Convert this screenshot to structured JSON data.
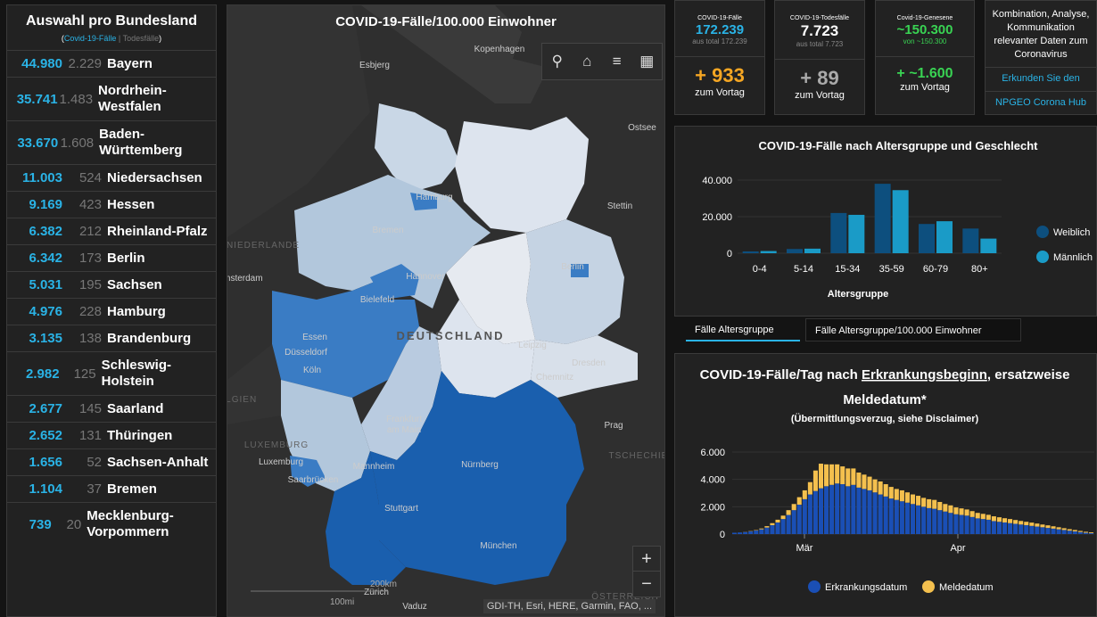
{
  "left": {
    "title": "Auswahl pro Bundesland",
    "legend_cases": "Covid-19-Fälle",
    "legend_sep": " | ",
    "legend_deaths": "Todesfälle",
    "rows": [
      {
        "cases": "44.980",
        "deaths": "2.229",
        "name": "Bayern"
      },
      {
        "cases": "35.741",
        "deaths": "1.483",
        "name": "Nordrhein-Westfalen"
      },
      {
        "cases": "33.670",
        "deaths": "1.608",
        "name": "Baden-Württemberg"
      },
      {
        "cases": "11.003",
        "deaths": "524",
        "name": "Niedersachsen"
      },
      {
        "cases": "9.169",
        "deaths": "423",
        "name": "Hessen"
      },
      {
        "cases": "6.382",
        "deaths": "212",
        "name": "Rheinland-Pfalz"
      },
      {
        "cases": "6.342",
        "deaths": "173",
        "name": "Berlin"
      },
      {
        "cases": "5.031",
        "deaths": "195",
        "name": "Sachsen"
      },
      {
        "cases": "4.976",
        "deaths": "228",
        "name": "Hamburg"
      },
      {
        "cases": "3.135",
        "deaths": "138",
        "name": "Brandenburg"
      },
      {
        "cases": "2.982",
        "deaths": "125",
        "name": "Schleswig-Holstein"
      },
      {
        "cases": "2.677",
        "deaths": "145",
        "name": "Saarland"
      },
      {
        "cases": "2.652",
        "deaths": "131",
        "name": "Thüringen"
      },
      {
        "cases": "1.656",
        "deaths": "52",
        "name": "Sachsen-Anhalt"
      },
      {
        "cases": "1.104",
        "deaths": "37",
        "name": "Bremen"
      },
      {
        "cases": "739",
        "deaths": "20",
        "name": "Mecklenburg-Vorpommern"
      }
    ]
  },
  "map": {
    "title": "COVID-19-Fälle/100.000 Einwohner",
    "toolbar": {
      "search": "search-icon",
      "home": "home-icon",
      "list": "list-icon",
      "qr": "qr-icon"
    },
    "country_label": "DEUTSCHLAND",
    "cities": [
      "Esbjerg",
      "Kopenhagen",
      "Ostsee",
      "Hamburg",
      "Stettin",
      "Bremen",
      "Berlin",
      "Hannover",
      "Bielefeld",
      "Essen",
      "Düsseldorf",
      "Köln",
      "Leipzig",
      "Dresden",
      "Chemnitz",
      "Frankfurt am Main",
      "Mannheim",
      "Luxemburg",
      "Saarbrücken",
      "Nürnberg",
      "Stuttgart",
      "München",
      "Prag",
      "Zürich",
      "Vaduz",
      "NIEDERLANDE",
      "BELGIEN",
      "LUXEMBURG",
      "TSCHECHIEN",
      "ÖSTERREICH",
      "Amsterdam"
    ],
    "zoom_in": "+",
    "zoom_out": "−",
    "scale_km": "200km",
    "scale_mi": "100mi",
    "attribution": "GDI-TH, Esri, HERE, Garmin, FAO, ..."
  },
  "stats": {
    "cases": {
      "label": "COVID-19-Fälle",
      "value": "172.239",
      "sub": "aus total 172.239",
      "delta": "+ 933",
      "delta_label": "zum Vortag",
      "color": "#2ab3e6",
      "delta_color": "#f5a623"
    },
    "deaths": {
      "label": "COVID-19-Todesfälle",
      "value": "7.723",
      "sub": "aus total 7.723",
      "delta": "+ 89",
      "delta_label": "zum Vortag",
      "color": "#ffffff",
      "delta_color": "#aaaaaa"
    },
    "recovered": {
      "label": "Covid-19-Genesene",
      "value": "~150.300",
      "sub": "von ~150.300",
      "delta": "+ ~1.600",
      "delta_label": "zum Vortag",
      "color": "#39d353",
      "delta_color": "#39d353"
    }
  },
  "combo": {
    "text": "Kombination, Analyse, Kommunikation relevanter Daten zum Coronavirus",
    "link1": "Erkunden Sie den",
    "link2": "NPGEO Corona Hub"
  },
  "tabs": {
    "active": "Fälle Altersgruppe",
    "inactive": "Fälle Altersgruppe/100.000 Einwohner"
  },
  "chart_data": [
    {
      "type": "bar",
      "title": "COVID-19-Fälle nach Altersgruppe und Geschlecht",
      "xlabel": "Altersgruppe",
      "ylabel": "",
      "categories": [
        "0-4",
        "5-14",
        "15-34",
        "35-59",
        "60-79",
        "80+"
      ],
      "ylim": [
        0,
        40000
      ],
      "yticks": [
        "0",
        "20.000",
        "40.000"
      ],
      "yticks_values": [
        0,
        20000,
        40000
      ],
      "series": [
        {
          "name": "Weiblich",
          "color": "#0d4f7e",
          "values": [
            1000,
            2300,
            22000,
            38000,
            16000,
            13500
          ]
        },
        {
          "name": "Männlich",
          "color": "#1a9bc7",
          "values": [
            1200,
            2500,
            21000,
            34500,
            17500,
            8000
          ]
        }
      ],
      "legend": "right"
    },
    {
      "type": "bar",
      "stacked": true,
      "title": "COVID-19-Fälle/Tag nach",
      "title_link": "Erkrankungsbeginn",
      "title_end": ", ersatzweise Meldedatum*",
      "subtitle": "(Übermittlungsverzug, siehe Disclaimer)",
      "xtick_labels": [
        "Mär",
        "Apr"
      ],
      "ylim": [
        0,
        6000
      ],
      "yticks": [
        "0",
        "2.000",
        "4.000",
        "6.000"
      ],
      "yticks_values": [
        0,
        2000,
        4000,
        6000
      ],
      "series": [
        {
          "name": "Erkrankungsdatum",
          "color": "#1a4fb5",
          "values": [
            100,
            120,
            150,
            200,
            260,
            350,
            480,
            650,
            850,
            1100,
            1400,
            1750,
            2150,
            2550,
            2900,
            3150,
            3350,
            3500,
            3600,
            3700,
            3650,
            3500,
            3600,
            3400,
            3300,
            3200,
            3050,
            2900,
            2750,
            2600,
            2500,
            2400,
            2300,
            2200,
            2100,
            2000,
            1900,
            1850,
            1750,
            1650,
            1550,
            1450,
            1400,
            1350,
            1250,
            1150,
            1100,
            1050,
            950,
            900,
            850,
            800,
            750,
            700,
            650,
            600,
            550,
            500,
            450,
            400,
            350,
            300,
            250,
            200,
            150,
            100,
            70
          ]
        },
        {
          "name": "Meldedatum",
          "color": "#f4c04e",
          "values": [
            0,
            0,
            10,
            20,
            30,
            60,
            100,
            150,
            200,
            250,
            350,
            450,
            550,
            650,
            900,
            1500,
            1800,
            1600,
            1500,
            1400,
            1300,
            1300,
            1200,
            1100,
            1050,
            1000,
            950,
            950,
            900,
            850,
            800,
            800,
            750,
            700,
            700,
            650,
            650,
            650,
            600,
            550,
            550,
            500,
            480,
            450,
            430,
            400,
            380,
            360,
            350,
            330,
            310,
            300,
            280,
            260,
            250,
            240,
            220,
            200,
            190,
            170,
            150,
            130,
            110,
            100,
            80,
            70,
            60
          ]
        }
      ],
      "legend": "bottom"
    }
  ]
}
